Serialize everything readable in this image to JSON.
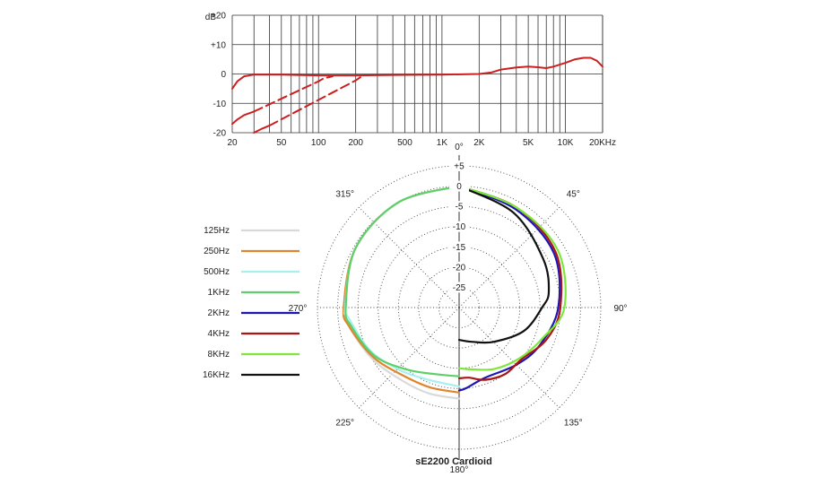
{
  "chart_data": [
    {
      "type": "line",
      "title": "",
      "xlabel": "",
      "ylabel": "dB",
      "x_scale": "log",
      "xlim": [
        20,
        20000
      ],
      "ylim": [
        -20,
        20
      ],
      "grid": true,
      "x_ticks": [
        {
          "value": 20,
          "label": "20"
        },
        {
          "value": 50,
          "label": "50"
        },
        {
          "value": 100,
          "label": "100"
        },
        {
          "value": 200,
          "label": "200"
        },
        {
          "value": 500,
          "label": "500"
        },
        {
          "value": 1000,
          "label": "1K"
        },
        {
          "value": 2000,
          "label": "2K"
        },
        {
          "value": 5000,
          "label": "5K"
        },
        {
          "value": 10000,
          "label": "10K"
        },
        {
          "value": 20000,
          "label": "20KHz"
        }
      ],
      "y_ticks": [
        {
          "value": 20,
          "label": "+20"
        },
        {
          "value": 10,
          "label": "+10"
        },
        {
          "value": 0,
          "label": "0"
        },
        {
          "value": -10,
          "label": "-10"
        },
        {
          "value": -20,
          "label": "-20"
        }
      ],
      "y_unit_label": "dB",
      "series_color": "#cc1f1f",
      "series": [
        {
          "style": "solid",
          "points": [
            [
              20,
              -5
            ],
            [
              22,
              -2.5
            ],
            [
              25,
              -0.8
            ],
            [
              30,
              -0.2
            ],
            [
              50,
              -0.2
            ],
            [
              100,
              -0.5
            ],
            [
              200,
              -0.5
            ],
            [
              500,
              -0.3
            ],
            [
              1000,
              -0.2
            ],
            [
              2000,
              0
            ],
            [
              2500,
              0.5
            ],
            [
              3000,
              1.5
            ],
            [
              4000,
              2.2
            ],
            [
              5000,
              2.5
            ],
            [
              6000,
              2.3
            ],
            [
              7000,
              2
            ],
            [
              8000,
              2.5
            ],
            [
              10000,
              3.8
            ],
            [
              12000,
              5
            ],
            [
              14000,
              5.5
            ],
            [
              16000,
              5.5
            ],
            [
              18000,
              4.5
            ],
            [
              20000,
              2.5
            ]
          ]
        },
        {
          "style": "solid",
          "points": [
            [
              20,
              -17
            ],
            [
              22,
              -15.5
            ],
            [
              25,
              -14
            ],
            [
              30,
              -12.8
            ]
          ]
        },
        {
          "style": "dashed",
          "points": [
            [
              30,
              -12.8
            ],
            [
              100,
              -2.5
            ],
            [
              110,
              -1.5
            ],
            [
              130,
              -0.8
            ]
          ]
        },
        {
          "style": "solid",
          "points": [
            [
              30,
              -20
            ],
            [
              35,
              -18.6
            ],
            [
              40,
              -17.6
            ]
          ]
        },
        {
          "style": "dashed",
          "points": [
            [
              40,
              -17.6
            ],
            [
              200,
              -2.2
            ],
            [
              220,
              -1
            ]
          ]
        }
      ]
    },
    {
      "type": "polar",
      "title": "sE2200  Cardioid",
      "radial_ticks": [
        "+5",
        "0",
        "-5",
        "-10",
        "-15",
        "-20",
        "-25"
      ],
      "radial_values": [
        5,
        0,
        -5,
        -10,
        -15,
        -20,
        -25
      ],
      "r_range": [
        -30,
        5
      ],
      "angle_labels": [
        {
          "angle": 0,
          "label": "0°"
        },
        {
          "angle": 45,
          "label": "45°"
        },
        {
          "angle": 90,
          "label": "90°"
        },
        {
          "angle": 135,
          "label": "135°"
        },
        {
          "angle": 180,
          "label": "180°"
        },
        {
          "angle": 225,
          "label": "225°"
        },
        {
          "angle": 270,
          "label": "270°"
        },
        {
          "angle": 315,
          "label": "315°"
        }
      ],
      "series": [
        {
          "name": "125Hz",
          "color": "#d9d9d9",
          "points": [
            [
              180,
              -7.5
            ],
            [
              200,
              -7.5
            ],
            [
              220,
              -7
            ],
            [
              240,
              -5
            ],
            [
              260,
              -2.5
            ],
            [
              270,
              -1.5
            ],
            [
              300,
              -0.5
            ],
            [
              330,
              0
            ],
            [
              360,
              0
            ]
          ]
        },
        {
          "name": "250Hz",
          "color": "#e0852c",
          "points": [
            [
              180,
              -9
            ],
            [
              200,
              -9
            ],
            [
              220,
              -8.2
            ],
            [
              240,
              -5.5
            ],
            [
              260,
              -2.5
            ],
            [
              270,
              -1.5
            ],
            [
              300,
              -0.5
            ],
            [
              330,
              0
            ],
            [
              360,
              0
            ]
          ]
        },
        {
          "name": "500Hz",
          "color": "#a6f0f0",
          "points": [
            [
              180,
              -10.5
            ],
            [
              205,
              -10.5
            ],
            [
              225,
              -8.5
            ],
            [
              245,
              -5.5
            ],
            [
              265,
              -2.5
            ],
            [
              270,
              -1.8
            ],
            [
              300,
              -0.5
            ],
            [
              330,
              0
            ],
            [
              360,
              0
            ]
          ]
        },
        {
          "name": "1KHz",
          "color": "#5fd068",
          "points": [
            [
              180,
              -13
            ],
            [
              200,
              -12.5
            ],
            [
              220,
              -10
            ],
            [
              240,
              -6
            ],
            [
              260,
              -3
            ],
            [
              270,
              -2
            ],
            [
              300,
              -0.5
            ],
            [
              330,
              0
            ],
            [
              360,
              0
            ]
          ]
        },
        {
          "name": "2KHz",
          "color": "#1c16b4",
          "points": [
            [
              0,
              0
            ],
            [
              30,
              -2
            ],
            [
              60,
              -3
            ],
            [
              90,
              -5.5
            ],
            [
              115,
              -8
            ],
            [
              135,
              -10
            ],
            [
              160,
              -11.5
            ],
            [
              175,
              -10
            ],
            [
              180,
              -9.5
            ]
          ]
        },
        {
          "name": "4KHz",
          "color": "#aa1515",
          "points": [
            [
              0,
              0
            ],
            [
              30,
              -1.5
            ],
            [
              60,
              -2.5
            ],
            [
              90,
              -5
            ],
            [
              110,
              -7
            ],
            [
              130,
              -10
            ],
            [
              145,
              -10
            ],
            [
              160,
              -11
            ],
            [
              172,
              -12.5
            ],
            [
              180,
              -12.5
            ]
          ]
        },
        {
          "name": "8KHz",
          "color": "#7ee83a",
          "points": [
            [
              0,
              0
            ],
            [
              30,
              -1.5
            ],
            [
              60,
              -1.8
            ],
            [
              90,
              -4
            ],
            [
              110,
              -8
            ],
            [
              130,
              -10.5
            ],
            [
              150,
              -12.5
            ],
            [
              170,
              -14.5
            ],
            [
              180,
              -15
            ]
          ]
        },
        {
          "name": "16KHz",
          "color": "#111111",
          "points": [
            [
              0,
              0
            ],
            [
              30,
              -3
            ],
            [
              60,
              -6
            ],
            [
              80,
              -7.5
            ],
            [
              90,
              -9.5
            ],
            [
              110,
              -13
            ],
            [
              135,
              -18
            ],
            [
              160,
              -21
            ],
            [
              180,
              -22
            ]
          ]
        }
      ]
    }
  ]
}
